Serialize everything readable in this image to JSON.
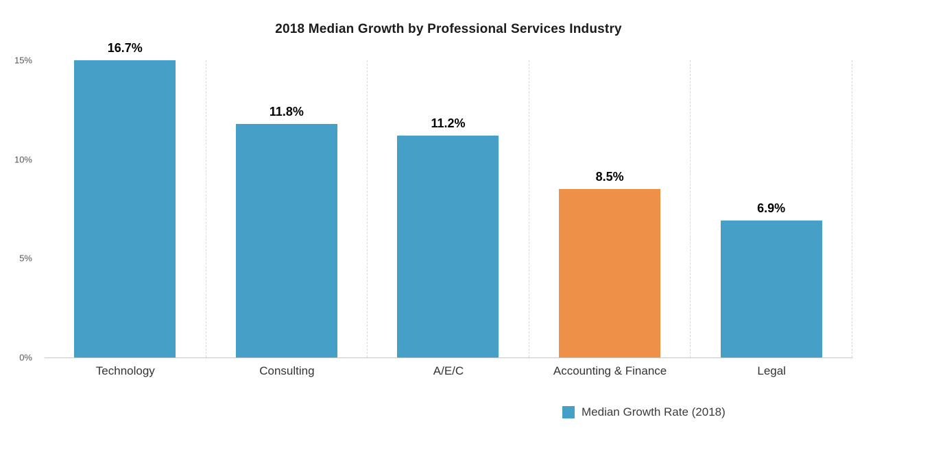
{
  "title": "2018 Median Growth by Professional Services Industry",
  "legend": {
    "label": "Median Growth Rate (2018)"
  },
  "colors": {
    "bar": "#459fc6",
    "highlight": "#ee9047",
    "grid": "#d8d8d8",
    "baseline": "#c9c9c9",
    "axis_text": "#555555"
  },
  "chart_data": {
    "type": "bar",
    "title": "2018 Median Growth by Professional Services Industry",
    "categories": [
      "Technology",
      "Consulting",
      "A/E/C",
      "Accounting & Finance",
      "Legal"
    ],
    "values": [
      16.7,
      11.8,
      11.2,
      8.5,
      6.9
    ],
    "value_labels": [
      "16.7%",
      "11.8%",
      "11.2%",
      "8.5%",
      "6.9%"
    ],
    "highlight_index": 3,
    "series_name": "Median Growth Rate (2018)",
    "ylim": [
      0,
      15
    ],
    "yticks": [
      {
        "value": 0,
        "label": "0%"
      },
      {
        "value": 5,
        "label": "5%"
      },
      {
        "value": 10,
        "label": "10%"
      },
      {
        "value": 15,
        "label": "15%"
      }
    ],
    "grid": "vertical-dashed",
    "legend_position": "bottom"
  }
}
